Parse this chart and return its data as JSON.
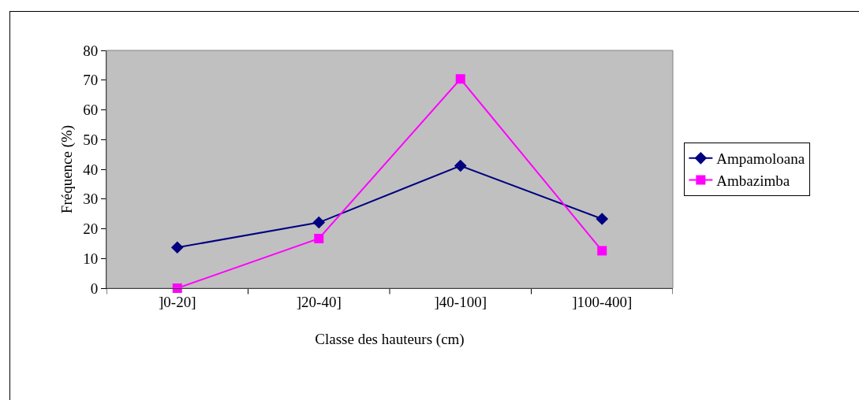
{
  "chart_data": {
    "type": "line",
    "xlabel": "Classe des hauteurs (cm)",
    "ylabel": "Fréquence (%)",
    "categories": [
      "]0-20]",
      "]20-40]",
      "]40-100]",
      "]100-400]"
    ],
    "series": [
      {
        "name": "Ampamoloana",
        "color": "#000080",
        "marker": "diamond",
        "values": [
          13.7,
          22.1,
          41.2,
          23.3
        ]
      },
      {
        "name": "Ambazimba",
        "color": "#ff00ff",
        "marker": "square",
        "values": [
          0,
          16.7,
          70.4,
          12.6
        ]
      }
    ],
    "ylim": [
      0,
      80
    ],
    "yticks": [
      0,
      10,
      20,
      30,
      40,
      50,
      60,
      70,
      80
    ],
    "grid": false,
    "legend": "right",
    "line_style": "solid"
  }
}
